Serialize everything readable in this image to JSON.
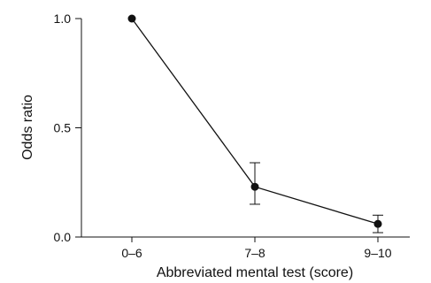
{
  "chart_data": {
    "type": "line",
    "categories": [
      "0–6",
      "7–8",
      "9–10"
    ],
    "values": [
      1.0,
      0.23,
      0.06
    ],
    "error_bars": [
      {
        "low": 1.0,
        "high": 1.0
      },
      {
        "low": 0.15,
        "high": 0.34
      },
      {
        "low": 0.02,
        "high": 0.1
      }
    ],
    "title": "",
    "xlabel": "Abbreviated mental test (score)",
    "ylabel": "Odds ratio",
    "ylim": [
      0.0,
      1.0
    ],
    "yticks": [
      0.0,
      0.5,
      1.0
    ],
    "ytick_labels": [
      "0.0",
      "0.5",
      "1.0"
    ],
    "grid": false,
    "marker_color": "#111111",
    "line_color": "#111111"
  }
}
